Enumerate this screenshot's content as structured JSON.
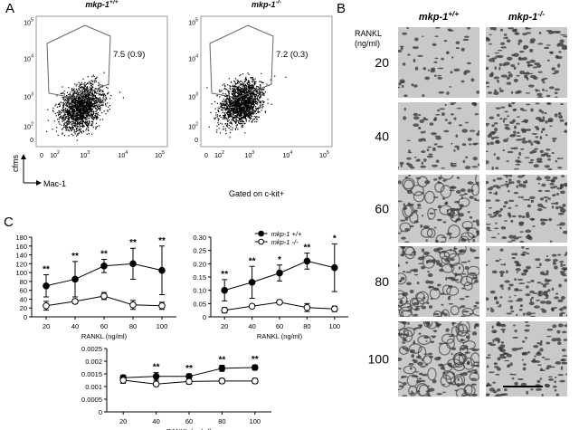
{
  "panel_a": {
    "label": "A",
    "plots": [
      {
        "title": {
          "name": "mkp-1",
          "sup": "+/+"
        },
        "gate_label": "7.5 (0.9)"
      },
      {
        "title": {
          "name": "mkp-1",
          "sup": "-/-"
        },
        "gate_label": "7.2 (0.3)"
      }
    ],
    "x_ticks": [
      {
        "base": "0"
      },
      {
        "base": "10",
        "exp": "2"
      },
      {
        "base": "10",
        "exp": "3"
      },
      {
        "base": "10",
        "exp": "4"
      },
      {
        "base": "10",
        "exp": "5"
      }
    ],
    "y_ticks": [
      {
        "base": "0"
      },
      {
        "base": "10",
        "exp": "2"
      },
      {
        "base": "10",
        "exp": "3"
      },
      {
        "base": "10",
        "exp": "4"
      },
      {
        "base": "10",
        "exp": "5"
      }
    ],
    "y_label": "cfms",
    "x_label": "Mac-1",
    "note": "Gated on c-kit+"
  },
  "panel_b": {
    "label": "B",
    "columns": [
      {
        "name": "mkp-1",
        "sup": "+/+"
      },
      {
        "name": "mkp-1",
        "sup": "-/-"
      }
    ],
    "row_title": "RANKL\n(ng/ml)",
    "rows": [
      "20",
      "40",
      "60",
      "80",
      "100"
    ]
  },
  "panel_c": {
    "label": "C"
  },
  "chart_data": [
    {
      "type": "line",
      "categories": [
        "20",
        "40",
        "60",
        "80",
        "100"
      ],
      "x_label": "RANKL (ng/ml)",
      "ylim": [
        0,
        180
      ],
      "yticks": [
        0,
        20,
        40,
        60,
        80,
        100,
        120,
        140,
        160,
        180
      ],
      "annotations": [
        "**",
        "**",
        "**",
        "**",
        "**"
      ],
      "series": [
        {
          "marker": "filled",
          "color": "#000000",
          "values": [
            70,
            85,
            115,
            120,
            105
          ],
          "errors": [
            25,
            40,
            15,
            35,
            55
          ]
        },
        {
          "marker": "open",
          "color": "#000000",
          "values": [
            25,
            35,
            47,
            27,
            25
          ],
          "errors": [
            10,
            5,
            8,
            10,
            8
          ]
        }
      ]
    },
    {
      "type": "line",
      "categories": [
        "20",
        "40",
        "60",
        "80",
        "100"
      ],
      "x_label": "RANKL (ng/ml)",
      "ylim": [
        0,
        0.3
      ],
      "yticks": [
        0,
        0.05,
        {
          "value": 0.1,
          "label": "0.10"
        },
        0.15,
        {
          "value": 0.2,
          "label": "0.20"
        },
        0.25,
        {
          "value": 0.3,
          "label": "0.30"
        }
      ],
      "annotations": [
        "**",
        "**",
        "*",
        "**",
        "*"
      ],
      "legend": "top",
      "series": [
        {
          "name": "mkp-1 +/+",
          "marker": "filled",
          "color": "#000000",
          "values": [
            0.1,
            0.13,
            0.165,
            0.21,
            0.185
          ],
          "errors": [
            0.04,
            0.06,
            0.03,
            0.03,
            0.09
          ]
        },
        {
          "name": "mkp-1 -/-",
          "marker": "open",
          "color": "#000000",
          "values": [
            0.025,
            0.04,
            0.055,
            0.035,
            0.03
          ],
          "errors": [
            0.01,
            0.005,
            0.005,
            0.015,
            0.01
          ]
        }
      ]
    },
    {
      "type": "line",
      "categories": [
        "20",
        "40",
        "60",
        "80",
        "100"
      ],
      "x_label": "RANKL (ng/ml)",
      "ylim": [
        0,
        0.0025
      ],
      "yticks": [
        0,
        0.0005,
        0.001,
        0.0015,
        0.002,
        0.0025
      ],
      "annotations": [
        null,
        "**",
        "**",
        "**",
        "**"
      ],
      "series": [
        {
          "marker": "filled",
          "color": "#000000",
          "values": [
            0.00135,
            0.0014,
            0.0014,
            0.00172,
            0.00175
          ],
          "errors": [
            0.0001,
            0.00015,
            0.0001,
            0.00012,
            0.0001
          ]
        },
        {
          "marker": "open",
          "color": "#000000",
          "values": [
            0.00125,
            0.0011,
            0.0012,
            0.00122,
            0.00122
          ],
          "errors": [
            0.00012,
            8e-05,
            0.0001,
            0.0001,
            0.0001
          ]
        }
      ]
    }
  ]
}
